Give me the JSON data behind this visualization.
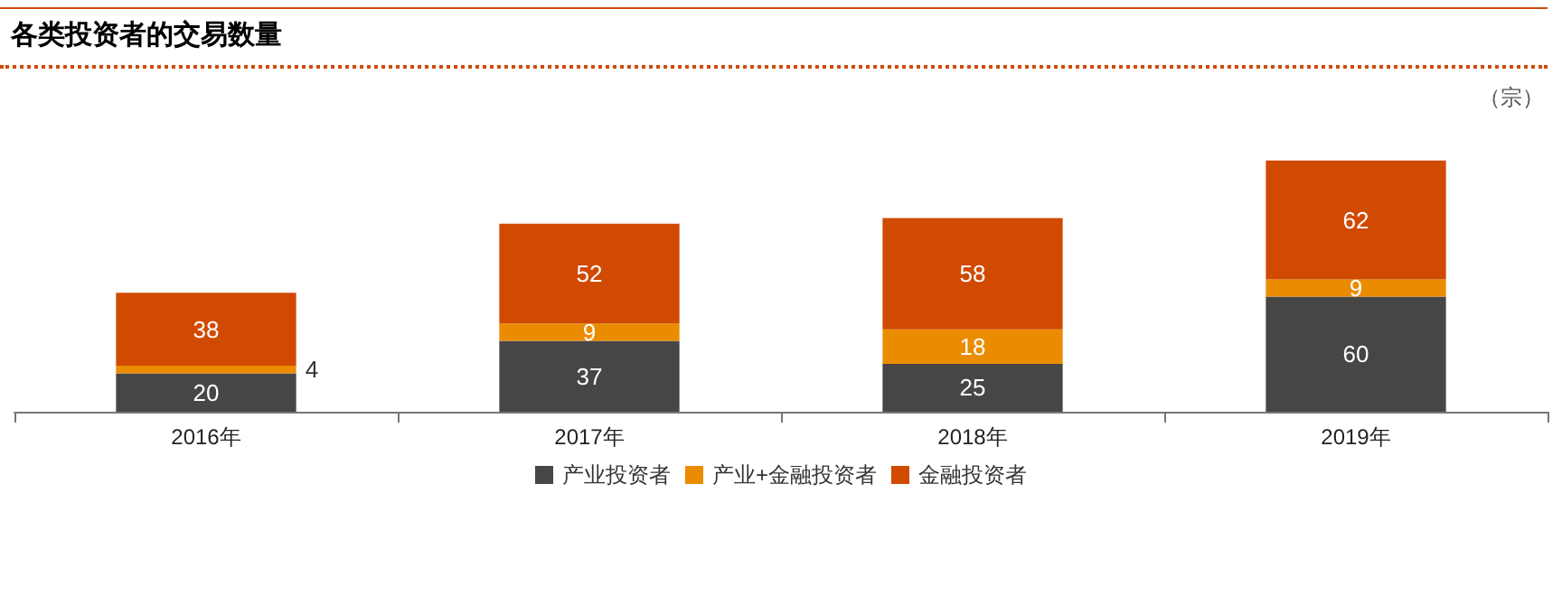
{
  "chart_data": {
    "type": "bar",
    "title": "各类投资者的交易数量",
    "ylabel": "（宗）",
    "categories": [
      "2016年",
      "2017年",
      "2018年",
      "2019年"
    ],
    "stacked": true,
    "data_labels": true,
    "legend": "bottom",
    "series": [
      {
        "name": "产业投资者",
        "color": "#464646",
        "values": [
          20,
          37,
          25,
          60
        ]
      },
      {
        "name": "产业+金融投资者",
        "color": "#eb8c00",
        "values": [
          4,
          9,
          18,
          9
        ]
      },
      {
        "name": "金融投资者",
        "color": "#d04a02",
        "values": [
          38,
          52,
          58,
          62
        ]
      }
    ]
  }
}
